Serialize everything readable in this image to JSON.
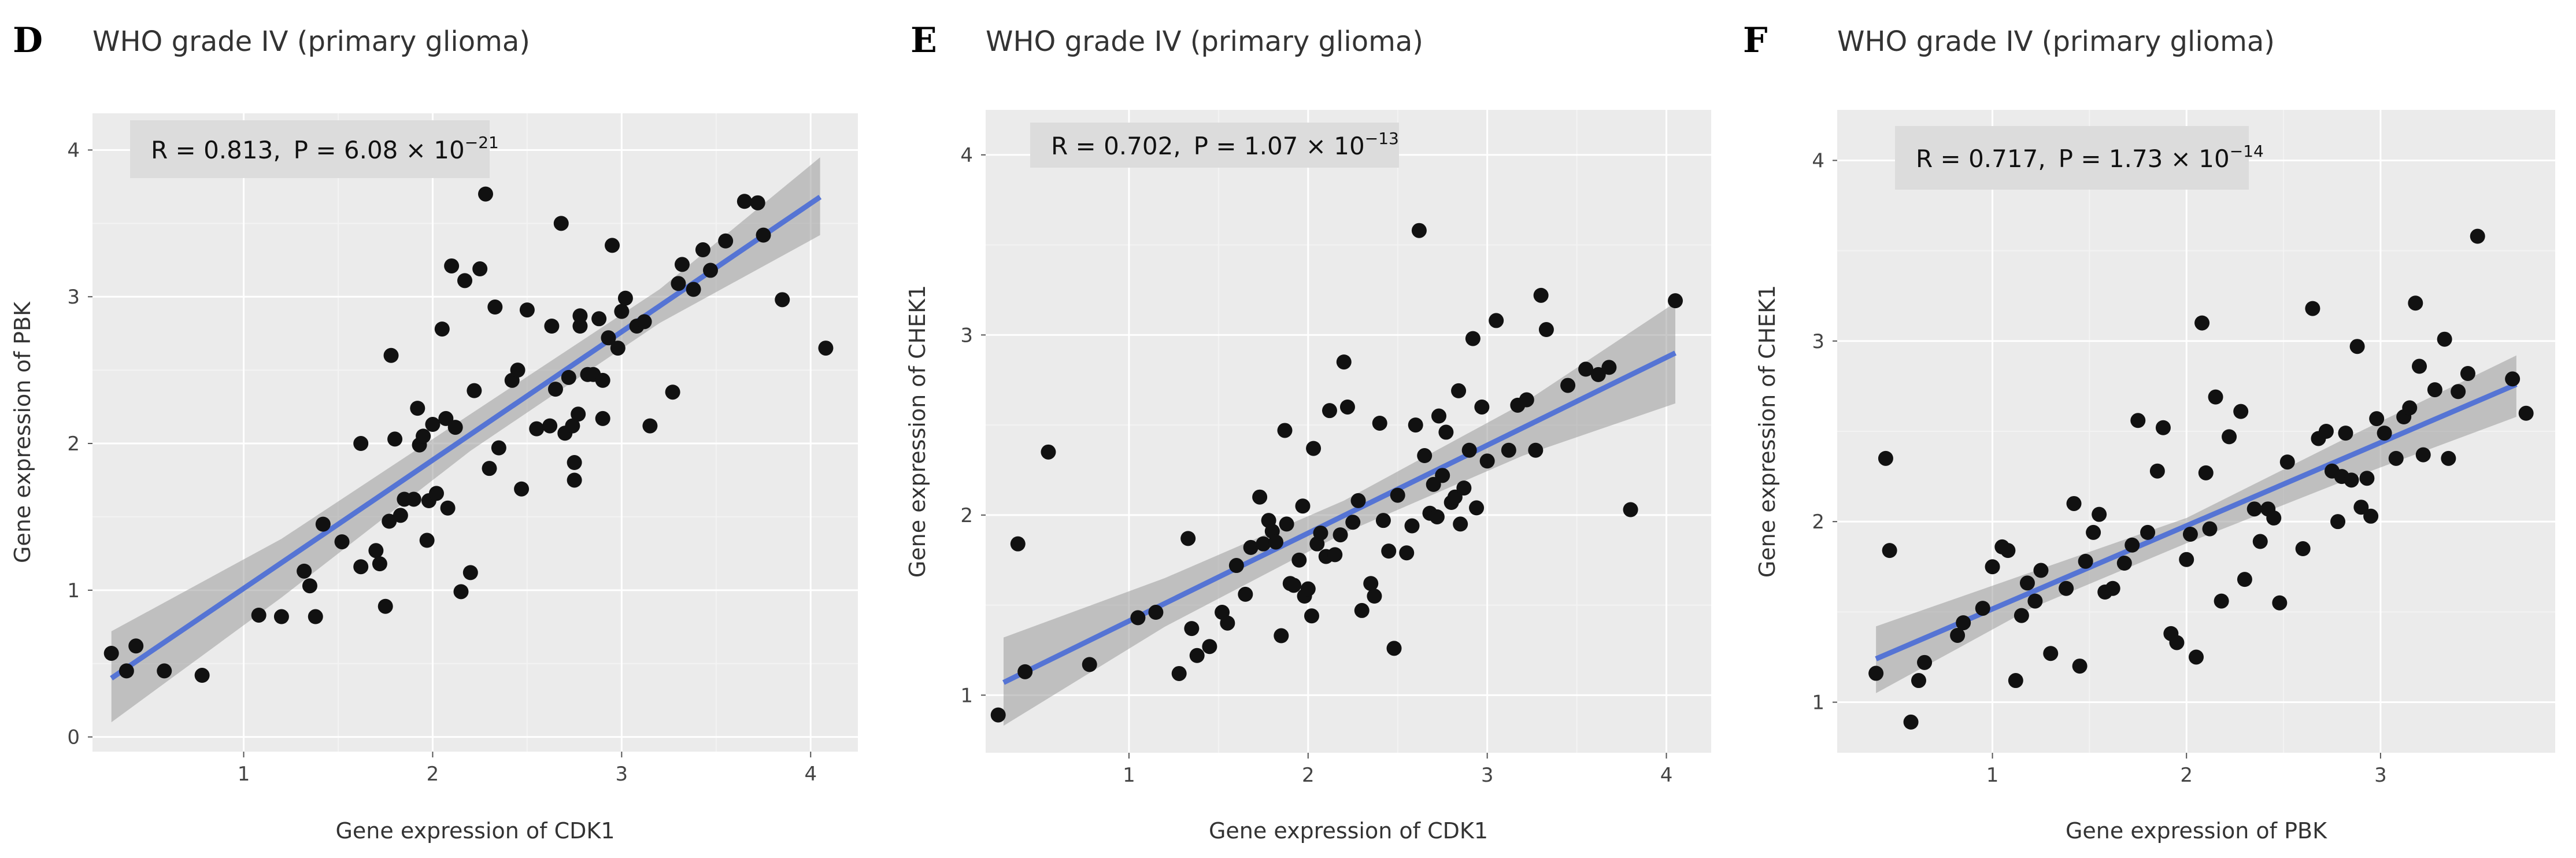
{
  "figure": {
    "panels": [
      "D",
      "E",
      "F"
    ]
  },
  "chart_data": [
    {
      "type": "scatter",
      "panel": "D",
      "title": "WHO grade IV (primary glioma)",
      "xlabel": "Gene expression of CDK1",
      "ylabel": "Gene expression of PBK",
      "stat": {
        "r_label": "R = 0.813,",
        "p_label": "P = 6.08 × 10",
        "p_exp": "−21"
      },
      "xlim": [
        0.2,
        4.25
      ],
      "ylim": [
        -0.1,
        4.25
      ],
      "xticks": [
        1,
        2,
        3,
        4
      ],
      "yticks": [
        0,
        1,
        2,
        3,
        4
      ],
      "fit": {
        "x": [
          0.3,
          4.05
        ],
        "y": [
          0.4,
          3.68
        ]
      },
      "band": {
        "x": [
          0.3,
          1.2,
          2.2,
          3.2,
          4.05
        ],
        "lower": [
          0.1,
          0.95,
          1.95,
          2.82,
          3.42
        ],
        "upper": [
          0.72,
          1.35,
          2.2,
          3.05,
          3.95
        ]
      },
      "points": [
        [
          0.3,
          0.57
        ],
        [
          0.38,
          0.45
        ],
        [
          0.43,
          0.62
        ],
        [
          0.58,
          0.45
        ],
        [
          0.78,
          0.42
        ],
        [
          1.08,
          0.83
        ],
        [
          1.2,
          0.82
        ],
        [
          1.32,
          1.13
        ],
        [
          1.35,
          1.03
        ],
        [
          1.38,
          0.82
        ],
        [
          1.42,
          1.45
        ],
        [
          1.52,
          1.33
        ],
        [
          1.62,
          1.16
        ],
        [
          1.62,
          2.0
        ],
        [
          1.7,
          1.27
        ],
        [
          1.72,
          1.18
        ],
        [
          1.75,
          0.89
        ],
        [
          1.77,
          1.47
        ],
        [
          1.78,
          2.6
        ],
        [
          1.8,
          2.03
        ],
        [
          1.83,
          1.51
        ],
        [
          1.85,
          1.62
        ],
        [
          1.9,
          1.62
        ],
        [
          1.92,
          2.24
        ],
        [
          1.93,
          1.99
        ],
        [
          1.95,
          2.05
        ],
        [
          1.97,
          1.34
        ],
        [
          1.98,
          1.61
        ],
        [
          2.0,
          2.13
        ],
        [
          2.02,
          1.66
        ],
        [
          2.05,
          2.78
        ],
        [
          2.07,
          2.17
        ],
        [
          2.08,
          1.56
        ],
        [
          2.1,
          3.21
        ],
        [
          2.12,
          2.11
        ],
        [
          2.15,
          0.99
        ],
        [
          2.17,
          3.11
        ],
        [
          2.2,
          1.12
        ],
        [
          2.22,
          2.36
        ],
        [
          2.25,
          3.19
        ],
        [
          2.28,
          3.7
        ],
        [
          2.3,
          1.83
        ],
        [
          2.33,
          2.93
        ],
        [
          2.35,
          1.97
        ],
        [
          2.42,
          2.43
        ],
        [
          2.45,
          2.5
        ],
        [
          2.47,
          1.69
        ],
        [
          2.5,
          2.91
        ],
        [
          2.55,
          2.1
        ],
        [
          2.62,
          2.12
        ],
        [
          2.63,
          2.8
        ],
        [
          2.65,
          2.37
        ],
        [
          2.68,
          3.5
        ],
        [
          2.7,
          2.07
        ],
        [
          2.72,
          2.45
        ],
        [
          2.74,
          2.12
        ],
        [
          2.75,
          1.75
        ],
        [
          2.75,
          1.87
        ],
        [
          2.77,
          2.2
        ],
        [
          2.78,
          2.8
        ],
        [
          2.78,
          2.87
        ],
        [
          2.82,
          2.47
        ],
        [
          2.85,
          2.47
        ],
        [
          2.88,
          2.85
        ],
        [
          2.9,
          2.17
        ],
        [
          2.9,
          2.43
        ],
        [
          2.93,
          2.72
        ],
        [
          2.95,
          3.35
        ],
        [
          2.98,
          2.65
        ],
        [
          3.0,
          2.9
        ],
        [
          3.02,
          2.99
        ],
        [
          3.08,
          2.8
        ],
        [
          3.12,
          2.83
        ],
        [
          3.15,
          2.12
        ],
        [
          3.27,
          2.35
        ],
        [
          3.3,
          3.09
        ],
        [
          3.32,
          3.22
        ],
        [
          3.38,
          3.05
        ],
        [
          3.43,
          3.32
        ],
        [
          3.47,
          3.18
        ],
        [
          3.55,
          3.38
        ],
        [
          3.65,
          3.65
        ],
        [
          3.72,
          3.64
        ],
        [
          3.75,
          3.42
        ],
        [
          3.85,
          2.98
        ],
        [
          4.08,
          2.65
        ]
      ]
    },
    {
      "type": "scatter",
      "panel": "E",
      "title": "WHO grade IV (primary glioma)",
      "xlabel": "Gene expression of CDK1",
      "ylabel": "Gene expression of CHEK1",
      "stat": {
        "r_label": "R = 0.702,",
        "p_label": "P = 1.07 × 10",
        "p_exp": "−13"
      },
      "xlim": [
        0.2,
        4.25
      ],
      "ylim": [
        0.68,
        4.25
      ],
      "xticks": [
        1,
        2,
        3,
        4
      ],
      "yticks": [
        1,
        2,
        3,
        4
      ],
      "fit": {
        "x": [
          0.3,
          4.05
        ],
        "y": [
          1.07,
          2.9
        ]
      },
      "band": {
        "x": [
          0.3,
          1.2,
          2.2,
          3.2,
          4.05
        ],
        "lower": [
          0.83,
          1.38,
          1.9,
          2.33,
          2.62
        ],
        "upper": [
          1.32,
          1.65,
          2.08,
          2.62,
          3.18
        ]
      },
      "points": [
        [
          0.27,
          0.89
        ],
        [
          0.38,
          1.84
        ],
        [
          0.42,
          1.13
        ],
        [
          0.55,
          2.35
        ],
        [
          0.78,
          1.17
        ],
        [
          1.05,
          1.43
        ],
        [
          1.15,
          1.46
        ],
        [
          1.28,
          1.12
        ],
        [
          1.33,
          1.87
        ],
        [
          1.35,
          1.37
        ],
        [
          1.38,
          1.22
        ],
        [
          1.45,
          1.27
        ],
        [
          1.52,
          1.46
        ],
        [
          1.55,
          1.4
        ],
        [
          1.6,
          1.72
        ],
        [
          1.65,
          1.56
        ],
        [
          1.68,
          1.82
        ],
        [
          1.73,
          2.1
        ],
        [
          1.75,
          1.84
        ],
        [
          1.78,
          1.97
        ],
        [
          1.8,
          1.91
        ],
        [
          1.82,
          1.85
        ],
        [
          1.85,
          1.33
        ],
        [
          1.87,
          2.47
        ],
        [
          1.88,
          1.95
        ],
        [
          1.9,
          1.62
        ],
        [
          1.92,
          1.61
        ],
        [
          1.95,
          1.75
        ],
        [
          1.97,
          2.05
        ],
        [
          1.98,
          1.55
        ],
        [
          2.0,
          1.59
        ],
        [
          2.02,
          1.44
        ],
        [
          2.03,
          2.37
        ],
        [
          2.05,
          1.84
        ],
        [
          2.07,
          1.9
        ],
        [
          2.1,
          1.77
        ],
        [
          2.12,
          2.58
        ],
        [
          2.15,
          1.78
        ],
        [
          2.18,
          1.89
        ],
        [
          2.2,
          2.85
        ],
        [
          2.22,
          2.6
        ],
        [
          2.25,
          1.96
        ],
        [
          2.28,
          2.08
        ],
        [
          2.3,
          1.47
        ],
        [
          2.35,
          1.62
        ],
        [
          2.37,
          1.55
        ],
        [
          2.4,
          2.51
        ],
        [
          2.42,
          1.97
        ],
        [
          2.45,
          1.8
        ],
        [
          2.48,
          1.26
        ],
        [
          2.5,
          2.11
        ],
        [
          2.55,
          1.79
        ],
        [
          2.58,
          1.94
        ],
        [
          2.6,
          2.5
        ],
        [
          2.62,
          3.58
        ],
        [
          2.65,
          2.33
        ],
        [
          2.68,
          2.01
        ],
        [
          2.7,
          2.17
        ],
        [
          2.72,
          1.99
        ],
        [
          2.73,
          2.55
        ],
        [
          2.75,
          2.22
        ],
        [
          2.77,
          2.46
        ],
        [
          2.8,
          2.07
        ],
        [
          2.82,
          2.1
        ],
        [
          2.84,
          2.69
        ],
        [
          2.85,
          1.95
        ],
        [
          2.87,
          2.15
        ],
        [
          2.9,
          2.36
        ],
        [
          2.92,
          2.98
        ],
        [
          2.94,
          2.04
        ],
        [
          2.97,
          2.6
        ],
        [
          3.0,
          2.3
        ],
        [
          3.05,
          3.08
        ],
        [
          3.12,
          2.36
        ],
        [
          3.17,
          2.61
        ],
        [
          3.22,
          2.64
        ],
        [
          3.27,
          2.36
        ],
        [
          3.3,
          3.22
        ],
        [
          3.33,
          3.03
        ],
        [
          3.45,
          2.72
        ],
        [
          3.55,
          2.81
        ],
        [
          3.62,
          2.78
        ],
        [
          3.68,
          2.82
        ],
        [
          3.8,
          2.03
        ],
        [
          4.05,
          3.19
        ]
      ]
    },
    {
      "type": "scatter",
      "panel": "F",
      "title": "WHO grade IV (primary glioma)",
      "xlabel": "Gene expression of PBK",
      "ylabel": "Gene expression of CHEK1",
      "stat": {
        "r_label": "R = 0.717,",
        "p_label": "P = 1.73 × 10",
        "p_exp": "−14"
      },
      "xlim": [
        0.2,
        3.9
      ],
      "ylim": [
        0.72,
        4.28
      ],
      "xticks": [
        1,
        2,
        3
      ],
      "yticks": [
        1,
        2,
        3,
        4
      ],
      "fit": {
        "x": [
          0.4,
          3.7
        ],
        "y": [
          1.24,
          2.76
        ]
      },
      "band": {
        "x": [
          0.4,
          1.2,
          2.0,
          2.8,
          3.7
        ],
        "lower": [
          1.05,
          1.52,
          1.88,
          2.22,
          2.58
        ],
        "upper": [
          1.42,
          1.72,
          2.02,
          2.45,
          2.92
        ]
      },
      "points": [
        [
          0.4,
          1.16
        ],
        [
          0.45,
          2.35
        ],
        [
          0.47,
          1.84
        ],
        [
          0.58,
          0.89
        ],
        [
          0.62,
          1.12
        ],
        [
          0.65,
          1.22
        ],
        [
          0.82,
          1.37
        ],
        [
          0.85,
          1.44
        ],
        [
          0.95,
          1.52
        ],
        [
          1.0,
          1.75
        ],
        [
          1.05,
          1.86
        ],
        [
          1.08,
          1.84
        ],
        [
          1.12,
          1.12
        ],
        [
          1.15,
          1.48
        ],
        [
          1.18,
          1.66
        ],
        [
          1.22,
          1.56
        ],
        [
          1.25,
          1.73
        ],
        [
          1.3,
          1.27
        ],
        [
          1.38,
          1.63
        ],
        [
          1.42,
          2.1
        ],
        [
          1.45,
          1.2
        ],
        [
          1.48,
          1.78
        ],
        [
          1.52,
          1.94
        ],
        [
          1.55,
          2.04
        ],
        [
          1.58,
          1.61
        ],
        [
          1.62,
          1.63
        ],
        [
          1.68,
          1.77
        ],
        [
          1.72,
          1.87
        ],
        [
          1.75,
          2.56
        ],
        [
          1.8,
          1.94
        ],
        [
          1.85,
          2.28
        ],
        [
          1.88,
          2.52
        ],
        [
          1.92,
          1.38
        ],
        [
          1.95,
          1.33
        ],
        [
          2.0,
          1.79
        ],
        [
          2.02,
          1.93
        ],
        [
          2.05,
          1.25
        ],
        [
          2.08,
          3.1
        ],
        [
          2.1,
          2.27
        ],
        [
          2.12,
          1.96
        ],
        [
          2.15,
          2.69
        ],
        [
          2.18,
          1.56
        ],
        [
          2.22,
          2.47
        ],
        [
          2.28,
          2.61
        ],
        [
          2.3,
          1.68
        ],
        [
          2.35,
          2.07
        ],
        [
          2.38,
          1.89
        ],
        [
          2.42,
          2.07
        ],
        [
          2.45,
          2.02
        ],
        [
          2.48,
          1.55
        ],
        [
          2.52,
          2.33
        ],
        [
          2.6,
          1.85
        ],
        [
          2.65,
          3.18
        ],
        [
          2.68,
          2.46
        ],
        [
          2.72,
          2.5
        ],
        [
          2.75,
          2.28
        ],
        [
          2.78,
          2.0
        ],
        [
          2.8,
          2.25
        ],
        [
          2.82,
          2.49
        ],
        [
          2.85,
          2.23
        ],
        [
          2.88,
          2.97
        ],
        [
          2.9,
          2.08
        ],
        [
          2.93,
          2.24
        ],
        [
          2.95,
          2.03
        ],
        [
          2.98,
          2.57
        ],
        [
          3.02,
          2.49
        ],
        [
          3.08,
          2.35
        ],
        [
          3.12,
          2.58
        ],
        [
          3.15,
          2.63
        ],
        [
          3.18,
          3.21
        ],
        [
          3.2,
          2.86
        ],
        [
          3.22,
          2.37
        ],
        [
          3.28,
          2.73
        ],
        [
          3.33,
          3.01
        ],
        [
          3.35,
          2.35
        ],
        [
          3.4,
          2.72
        ],
        [
          3.45,
          2.82
        ],
        [
          3.5,
          3.58
        ],
        [
          3.68,
          2.79
        ],
        [
          3.75,
          2.6
        ]
      ]
    }
  ]
}
